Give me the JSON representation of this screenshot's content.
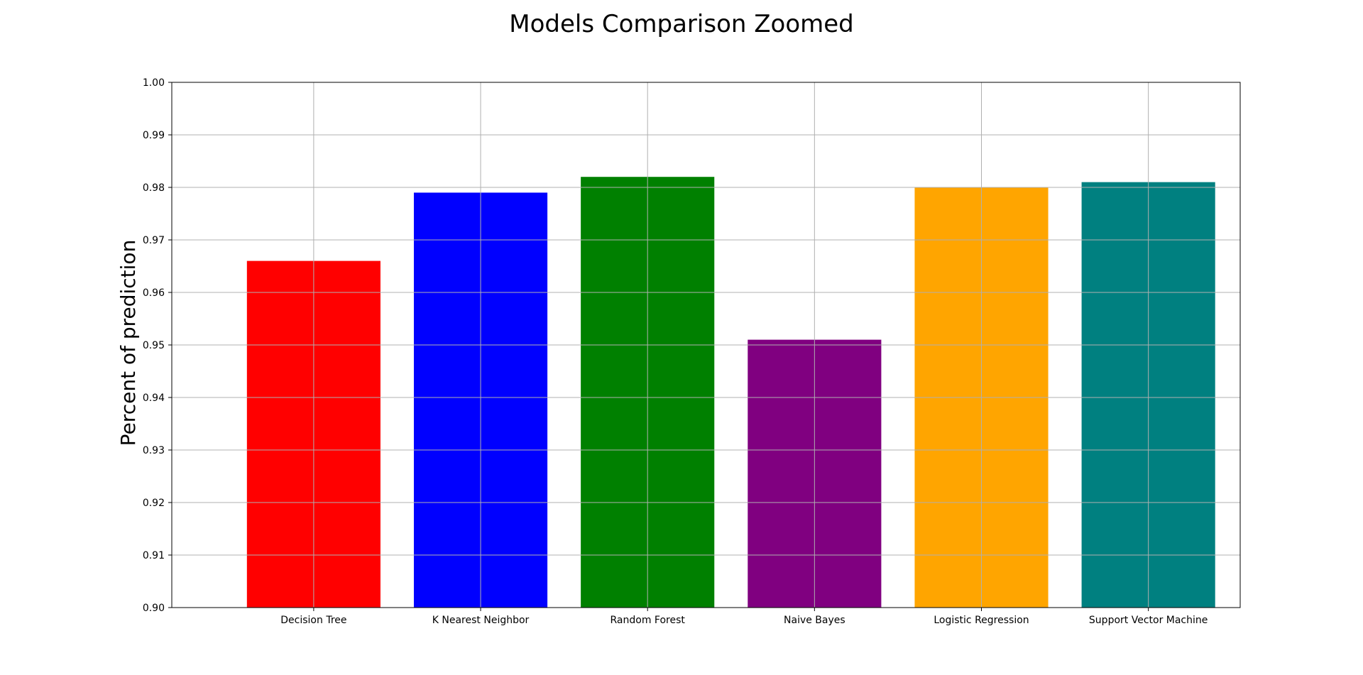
{
  "chart_data": {
    "type": "bar",
    "title": "Models Comparison Zoomed",
    "xlabel": "",
    "ylabel": "Percent of prediction",
    "categories": [
      "Decision Tree",
      "K Nearest Neighbor",
      "Random Forest",
      "Naive Bayes",
      "Logistic Regression",
      "Support Vector Machine"
    ],
    "values": [
      0.966,
      0.979,
      0.982,
      0.951,
      0.98,
      0.981
    ],
    "colors": [
      "#ff0000",
      "#0000ff",
      "#008000",
      "#800080",
      "#ffa500",
      "#008080"
    ],
    "ylim": [
      0.9,
      1.0
    ],
    "yticks": [
      "0.90",
      "0.91",
      "0.92",
      "0.93",
      "0.94",
      "0.95",
      "0.96",
      "0.97",
      "0.98",
      "0.99",
      "1.00"
    ],
    "grid": true,
    "legend": "none"
  }
}
